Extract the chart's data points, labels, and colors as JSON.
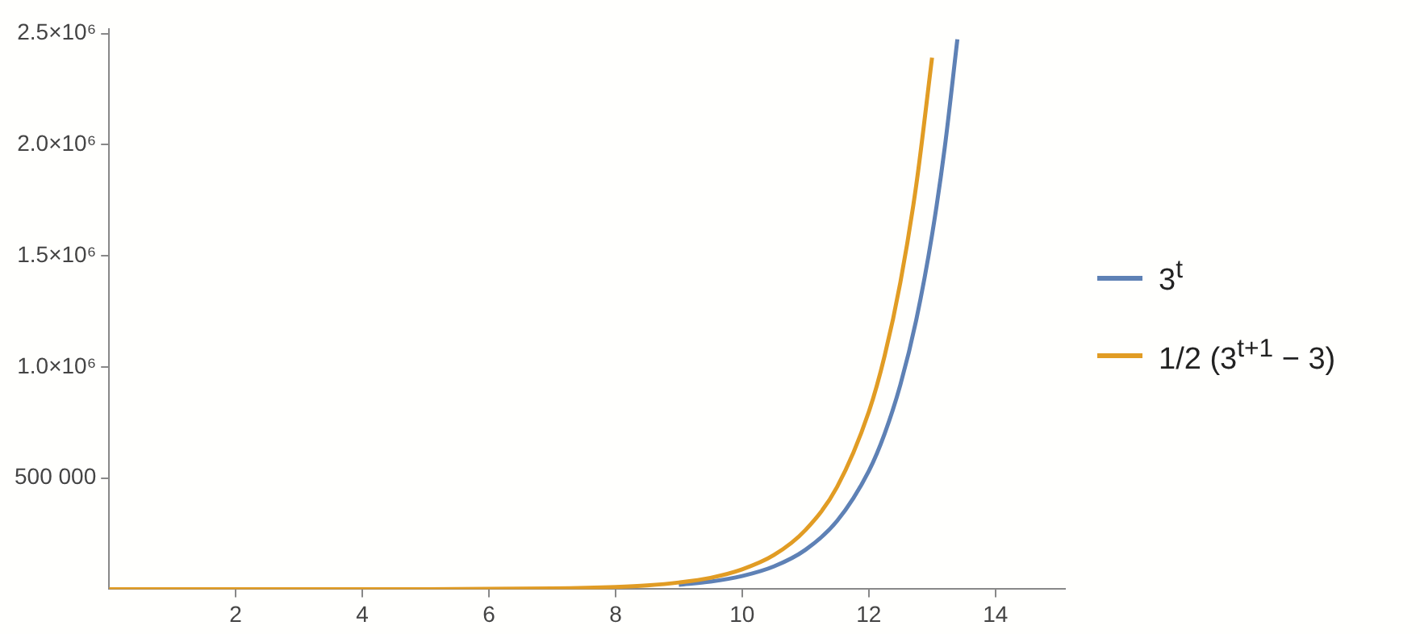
{
  "chart_data": {
    "type": "line",
    "x": [
      0,
      1,
      2,
      3,
      4,
      5,
      6,
      7,
      8,
      8.5,
      9,
      9.5,
      10,
      10.5,
      11,
      11.5,
      12,
      12.25,
      12.5,
      12.75,
      13,
      13.2,
      13.4
    ],
    "series": [
      {
        "name": "3$^{t}$",
        "color": "#5e81b5",
        "values": [
          null,
          null,
          null,
          null,
          null,
          null,
          null,
          null,
          null,
          null,
          20000,
          34000,
          59000,
          102000,
          177000,
          307000,
          531000,
          699000,
          920000,
          1211000,
          1594000,
          1986000,
          2474000
        ]
      },
      {
        "name": "1/2 (3$^{t+1}$ − 3)",
        "color": "#e19c24",
        "values": [
          0,
          0,
          0,
          0,
          0,
          0,
          1000,
          3000,
          10000,
          17000,
          30000,
          51000,
          89000,
          153000,
          266000,
          460000,
          797000,
          1049000,
          1381000,
          1817000,
          2391000,
          null,
          null
        ]
      }
    ],
    "xlim": [
      0,
      15.1
    ],
    "ylim": [
      0,
      2520000.0
    ],
    "xticks": [
      2,
      4,
      6,
      8,
      10,
      12,
      14
    ],
    "yticks": [
      {
        "value": 500000,
        "label": "500 000"
      },
      {
        "value": 1000000,
        "label": "1.0×10⁶"
      },
      {
        "value": 1500000,
        "label": "1.5×10⁶"
      },
      {
        "value": 2000000,
        "label": "2.0×10⁶"
      },
      {
        "value": 2500000,
        "label": "2.5×10⁶"
      }
    ],
    "legend": "right",
    "grid": false,
    "marker": "none",
    "line_style": "solid"
  }
}
